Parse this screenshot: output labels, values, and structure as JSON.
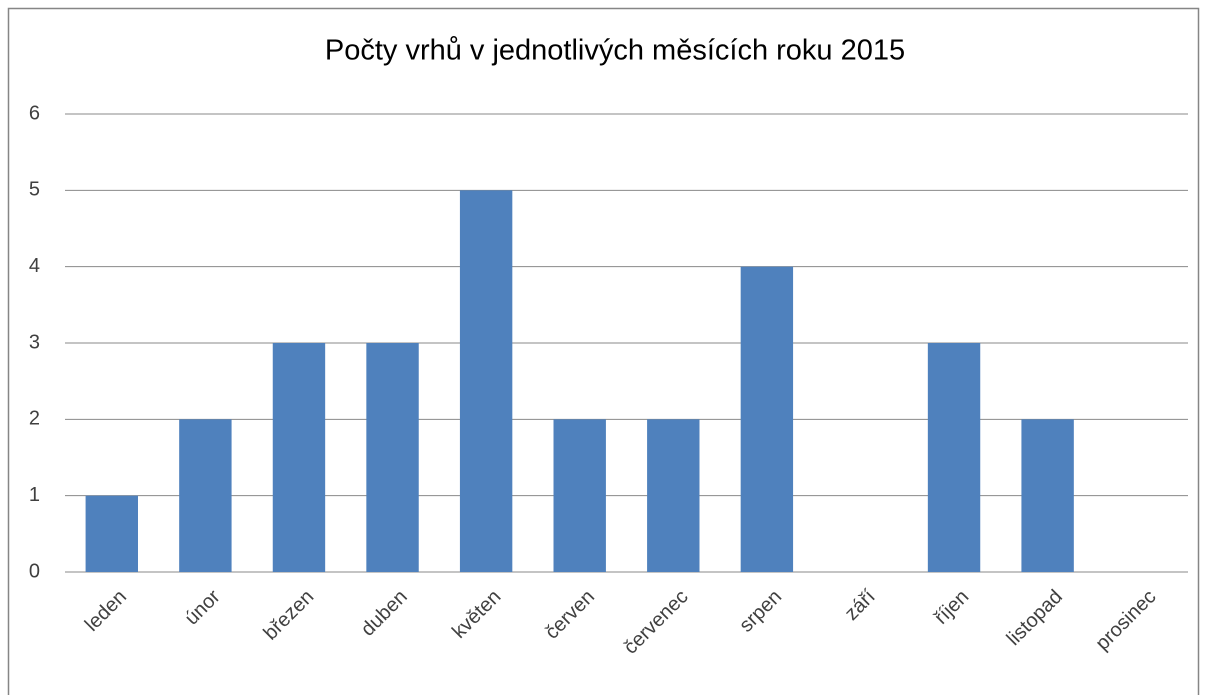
{
  "chart_data": {
    "type": "bar",
    "title": "Počty vrhů v jednotlivých měsících roku 2015",
    "categories": [
      "leden",
      "únor",
      "březen",
      "duben",
      "květen",
      "červen",
      "červenec",
      "srpen",
      "září",
      "říjen",
      "listopad",
      "prosinec"
    ],
    "values": [
      1,
      2,
      3,
      3,
      5,
      2,
      2,
      4,
      0,
      3,
      2,
      0
    ],
    "color": "#4f81bd",
    "ylim": [
      0,
      6
    ],
    "yticks": [
      0,
      1,
      2,
      3,
      4,
      5,
      6
    ],
    "grid": true
  }
}
